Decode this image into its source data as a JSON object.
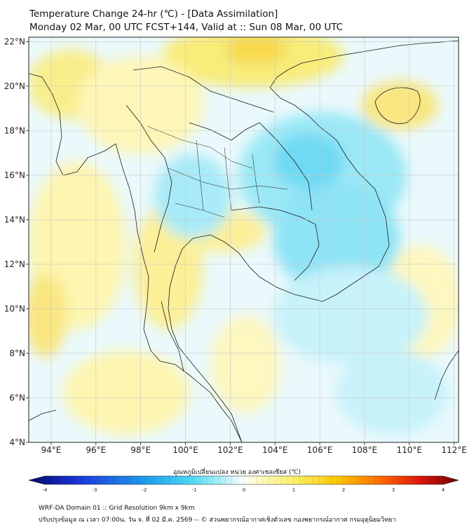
{
  "header": {
    "title_line1": "Temperature Change 24-hr (℃) - [Data Assimilation]",
    "title_line2": "Monday 02 Mar, 00 UTC FCST+144, Valid at :: Sun 08 Mar, 00 UTC"
  },
  "map": {
    "lon_labels": [
      "94°E",
      "96°E",
      "98°E",
      "100°E",
      "102°E",
      "104°E",
      "106°E",
      "108°E",
      "110°E",
      "112°E"
    ],
    "lat_labels": [
      "22°N",
      "20°N",
      "18°N",
      "16°N",
      "14°N",
      "12°N",
      "10°N",
      "8°N",
      "6°N",
      "4°N"
    ],
    "lon_values": [
      94,
      96,
      98,
      100,
      102,
      104,
      106,
      108,
      110,
      112
    ],
    "lat_values": [
      22,
      20,
      18,
      16,
      14,
      12,
      10,
      8,
      6,
      4
    ],
    "lon_range": [
      93,
      112.2
    ],
    "lat_range": [
      4,
      22.2
    ]
  },
  "colorbar": {
    "label": "อุณหภูมิเปลี่ยนแปลง หน่วย องศาเซลเซียส (℃)",
    "ticks": [
      "-4",
      "-3",
      "-2",
      "-1",
      "0",
      "1",
      "2",
      "3",
      "4"
    ],
    "tick_values": [
      -4,
      -3,
      -2,
      -1,
      0,
      1,
      2,
      3,
      4
    ],
    "range": [
      -4,
      4
    ]
  },
  "footer": {
    "line1": "WRF-DA Domain 01 :: Grid Resolution 9km x 9km",
    "line2": "ปรับปรุงข้อมูล ณ เวลา 07:00น. วัน จ. ที่ 02 มี.ค. 2569 -- © ส่วนพยากรณ์อากาศเชิงตัวเลข กองพยากรณ์อากาศ กรมอุตุนิยมวิทยา"
  }
}
